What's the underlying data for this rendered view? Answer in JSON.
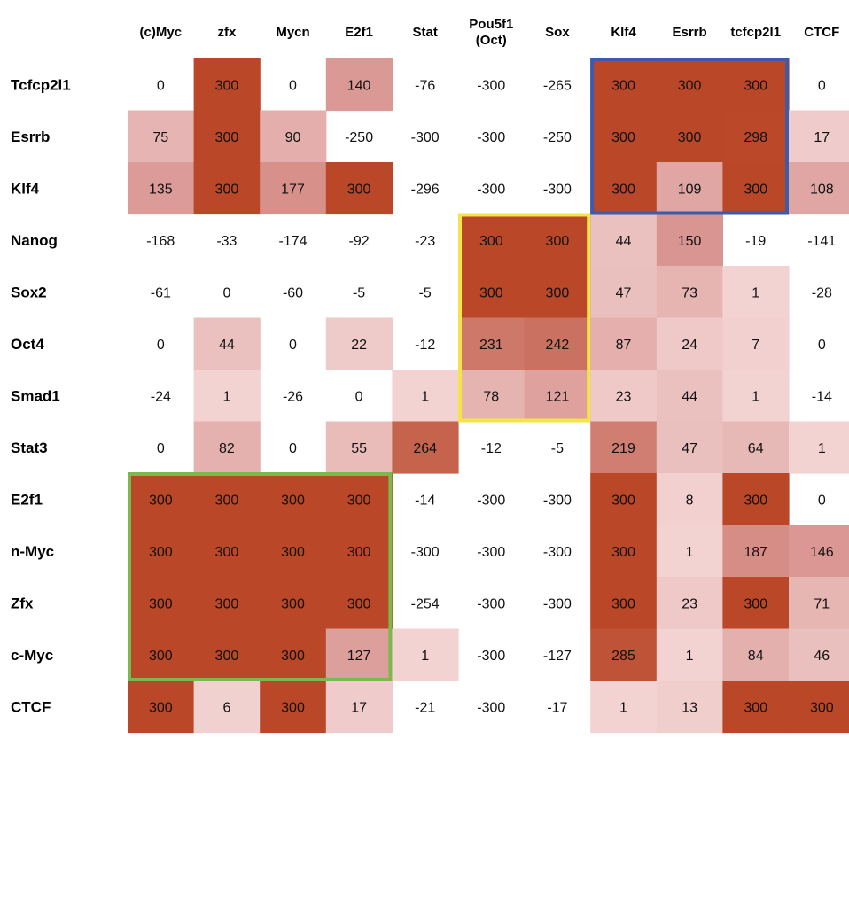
{
  "chart_data": {
    "type": "heatmap",
    "title": "",
    "xlabel": "",
    "ylabel": "",
    "columns": [
      [
        "(c)Myc"
      ],
      [
        "zfx"
      ],
      [
        "Mycn"
      ],
      [
        "E2f1"
      ],
      [
        "Stat"
      ],
      [
        "Pou5f1",
        "(Oct)"
      ],
      [
        "Sox"
      ],
      [
        "Klf4"
      ],
      [
        "Esrrb"
      ],
      [
        "tcfcp2l1"
      ],
      [
        "CTCF"
      ]
    ],
    "rows": [
      "Tcfcp2l1",
      "Esrrb",
      "Klf4",
      "Nanog",
      "Sox2",
      "Oct4",
      "Smad1",
      "Stat3",
      "E2f1",
      "n-Myc",
      "Zfx",
      "c-Myc",
      "CTCF"
    ],
    "values": [
      [
        0,
        300,
        0,
        140,
        -76,
        -300,
        -265,
        300,
        300,
        300,
        0
      ],
      [
        75,
        300,
        90,
        -250,
        -300,
        -300,
        -250,
        300,
        300,
        298,
        17
      ],
      [
        135,
        300,
        177,
        300,
        -296,
        -300,
        -300,
        300,
        109,
        300,
        108
      ],
      [
        -168,
        -33,
        -174,
        -92,
        -23,
        300,
        300,
        44,
        150,
        -19,
        -141
      ],
      [
        -61,
        0,
        -60,
        -5,
        -5,
        300,
        300,
        47,
        73,
        1,
        -28
      ],
      [
        0,
        44,
        0,
        22,
        -12,
        231,
        242,
        87,
        24,
        7,
        0
      ],
      [
        -24,
        1,
        -26,
        0,
        1,
        78,
        121,
        23,
        44,
        1,
        -14
      ],
      [
        0,
        82,
        0,
        55,
        264,
        -12,
        -5,
        219,
        47,
        64,
        1
      ],
      [
        300,
        300,
        300,
        300,
        -14,
        -300,
        -300,
        300,
        8,
        300,
        0
      ],
      [
        300,
        300,
        300,
        300,
        -300,
        -300,
        -300,
        300,
        1,
        187,
        146
      ],
      [
        300,
        300,
        300,
        300,
        -254,
        -300,
        -300,
        300,
        23,
        300,
        71
      ],
      [
        300,
        300,
        300,
        127,
        1,
        -300,
        -127,
        285,
        1,
        84,
        46
      ],
      [
        300,
        6,
        300,
        17,
        -21,
        -300,
        -17,
        1,
        13,
        300,
        300
      ]
    ],
    "color_scale": {
      "max_value": 300,
      "min_color": "#ffffff",
      "low_color": "#f2d3d2",
      "mid_color": "#d99591",
      "high_color": "#ba4727"
    },
    "highlight_boxes": [
      {
        "rows": [
          0,
          2
        ],
        "cols": [
          7,
          9
        ],
        "color": "#3d5ba8"
      },
      {
        "rows": [
          3,
          6
        ],
        "cols": [
          5,
          6
        ],
        "color": "#f3e44a"
      },
      {
        "rows": [
          8,
          11
        ],
        "cols": [
          0,
          3
        ],
        "color": "#7bb84d"
      }
    ]
  }
}
